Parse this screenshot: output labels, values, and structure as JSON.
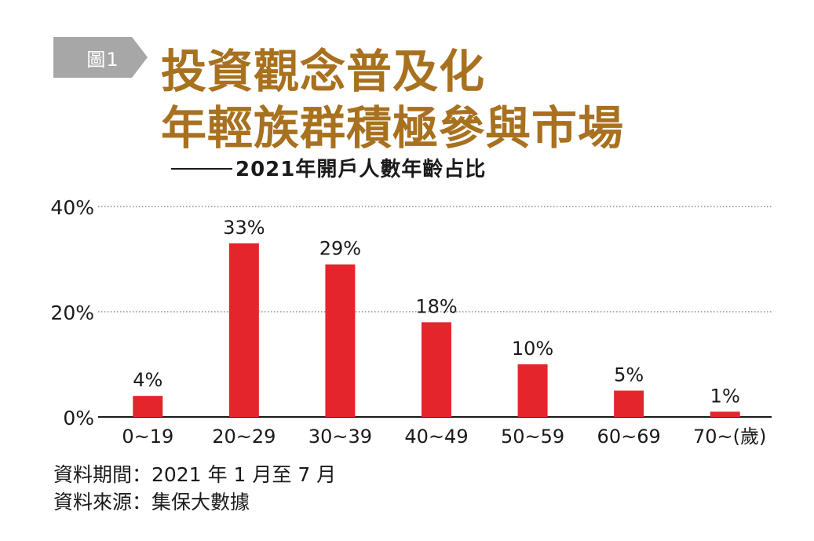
{
  "badge": {
    "label": "圖1"
  },
  "title": {
    "line1": "投資觀念普及化",
    "line2": "年輕族群積極參與市場"
  },
  "subtitle": "2021年開戶人數年齡占比",
  "footnotes": {
    "period": "資料期間：2021 年 1 月至 7 月",
    "source": "資料來源：集保大數據"
  },
  "colors": {
    "bar": "#e3262b",
    "title": "#a8711f",
    "badge": "#a7a7a7"
  },
  "chart_data": {
    "type": "bar",
    "categories": [
      "0~19",
      "20~29",
      "30~39",
      "40~49",
      "50~59",
      "60~69",
      "70~(歲)"
    ],
    "values": [
      4,
      33,
      29,
      18,
      10,
      5,
      1
    ],
    "data_labels": [
      "4%",
      "33%",
      "29%",
      "18%",
      "10%",
      "5%",
      "1%"
    ],
    "ylim": [
      0,
      40
    ],
    "yticks": [
      0,
      20,
      40
    ],
    "ytick_labels": [
      "0%",
      "20%",
      "40%"
    ],
    "grid": "dotted horizontal",
    "legend": "none"
  }
}
